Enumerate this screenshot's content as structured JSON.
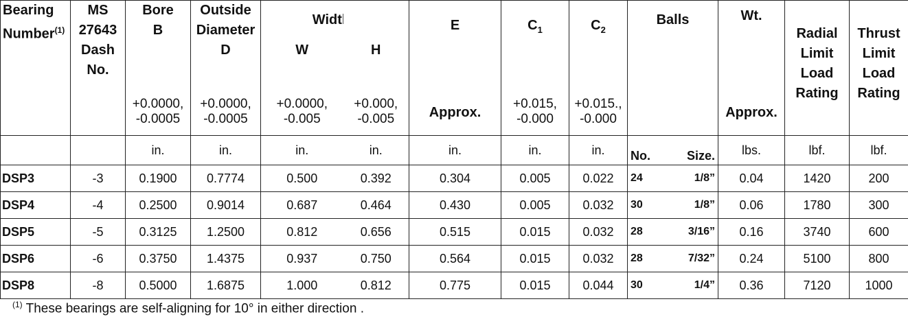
{
  "headers": {
    "bearing": "Bearing",
    "number": "Number",
    "footnote_mark": "(1)",
    "ms": "MS",
    "ms_num": "27643",
    "dash": "Dash",
    "no": "No.",
    "bore": "Bore",
    "bore_sym": "B",
    "bore_tol1": "+0.0000,",
    "bore_tol2": "-0.0005",
    "od1": "Outside",
    "od2": "Diameter",
    "od_sym": "D",
    "od_tol1": "+0.0000,",
    "od_tol2": "-0.0005",
    "widths": "Widths",
    "w": "W",
    "w_tol1": "+0.0000,",
    "w_tol2": "-0.005",
    "h": "H",
    "h_tol1": "+0.000,",
    "h_tol2": "-0.005",
    "e": "E",
    "e_approx": "Approx.",
    "c1": "C",
    "c1_sub": "1",
    "c1_tol1": "+0.015,",
    "c1_tol2": "-0.000",
    "c2": "C",
    "c2_sub": "2",
    "c2_tol1": "+0.015.,",
    "c2_tol2": "-0.000",
    "balls": "Balls",
    "wt": "Wt.",
    "wt_approx": "Approx.",
    "radial": [
      "Radial",
      "Limit",
      "Load",
      "Rating"
    ],
    "thrust": [
      "Thrust",
      "Limit",
      "Load",
      "Rating"
    ]
  },
  "units": {
    "bore": "in.",
    "od": "in.",
    "w": "in.",
    "h": "in.",
    "e": "in.",
    "c1": "in.",
    "c2": "in.",
    "balls_no": "No.",
    "balls_size": "Size.",
    "wt": "lbs.",
    "radial": "lbf.",
    "thrust": "lbf."
  },
  "rows": [
    {
      "bearing": "DSP3",
      "dash": "-3",
      "bore": "0.1900",
      "od": "0.7774",
      "w": "0.500",
      "h": "0.392",
      "e": "0.304",
      "c1": "0.005",
      "c2": "0.022",
      "balls_no": "24",
      "balls_size": "1/8”",
      "wt": "0.04",
      "radial": "1420",
      "thrust": "200"
    },
    {
      "bearing": "DSP4",
      "dash": "-4",
      "bore": "0.2500",
      "od": "0.9014",
      "w": "0.687",
      "h": "0.464",
      "e": "0.430",
      "c1": "0.005",
      "c2": "0.032",
      "balls_no": "30",
      "balls_size": "1/8”",
      "wt": "0.06",
      "radial": "1780",
      "thrust": "300"
    },
    {
      "bearing": "DSP5",
      "dash": "-5",
      "bore": "0.3125",
      "od": "1.2500",
      "w": "0.812",
      "h": "0.656",
      "e": "0.515",
      "c1": "0.015",
      "c2": "0.032",
      "balls_no": "28",
      "balls_size": "3/16”",
      "wt": "0.16",
      "radial": "3740",
      "thrust": "600"
    },
    {
      "bearing": "DSP6",
      "dash": "-6",
      "bore": "0.3750",
      "od": "1.4375",
      "w": "0.937",
      "h": "0.750",
      "e": "0.564",
      "c1": "0.015",
      "c2": "0.032",
      "balls_no": "28",
      "balls_size": "7/32”",
      "wt": "0.24",
      "radial": "5100",
      "thrust": "800"
    },
    {
      "bearing": "DSP8",
      "dash": "-8",
      "bore": "0.5000",
      "od": "1.6875",
      "w": "1.000",
      "h": "0.812",
      "e": "0.775",
      "c1": "0.015",
      "c2": "0.044",
      "balls_no": "30",
      "balls_size": "1/4”",
      "wt": "0.36",
      "radial": "7120",
      "thrust": "1000"
    }
  ],
  "footnote": {
    "mark": "(1)",
    "text": " These bearings are self-aligning for 10° in either direction ."
  }
}
